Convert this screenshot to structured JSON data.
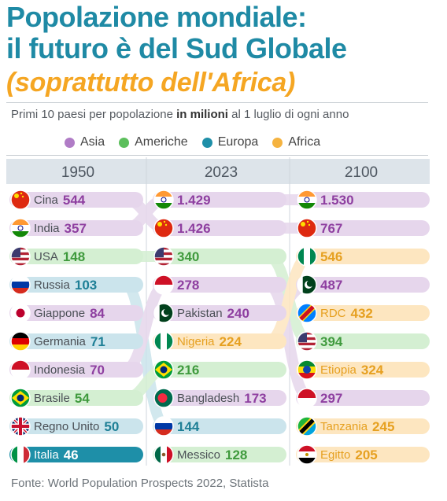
{
  "title": {
    "line1": "Popolazione mondiale:",
    "line2": "il futuro è del Sud Globale",
    "line3": "(soprattutto dell'Africa)"
  },
  "subtitle": {
    "before": "Primi 10 paesi per popolazione ",
    "bold": "in milioni",
    "after": " al 1 luglio di ogni anno"
  },
  "legend": [
    {
      "label": "Asia",
      "color": "#b07cc6"
    },
    {
      "label": "Americhe",
      "color": "#5cbf5c"
    },
    {
      "label": "Europa",
      "color": "#1e8fa8"
    },
    {
      "label": "Africa",
      "color": "#f5b340"
    }
  ],
  "source": "Fonte: World Population Prospects 2022, Statista",
  "chart_data": {
    "type": "table",
    "continent_colors": {
      "asia": {
        "bar": "#e6d6ec",
        "text": "#8e3fa0"
      },
      "americhe": {
        "bar": "#d4efd2",
        "text": "#3f9a3d"
      },
      "europa": {
        "bar": "#cbe4ec",
        "text": "#1e7f96"
      },
      "africa": {
        "bar": "#fde6c0",
        "text": "#e6a020"
      }
    },
    "columns": [
      {
        "year": "1950",
        "rows": [
          {
            "country": "Cina",
            "value": 544,
            "value_label": "544",
            "continent": "asia",
            "flag": "china"
          },
          {
            "country": "India",
            "value": 357,
            "value_label": "357",
            "continent": "asia",
            "flag": "india"
          },
          {
            "country": "USA",
            "value": 148,
            "value_label": "148",
            "continent": "americhe",
            "flag": "usa"
          },
          {
            "country": "Russia",
            "value": 103,
            "value_label": "103",
            "continent": "europa",
            "flag": "russia"
          },
          {
            "country": "Giappone",
            "value": 84,
            "value_label": "84",
            "continent": "asia",
            "flag": "japan"
          },
          {
            "country": "Germania",
            "value": 71,
            "value_label": "71",
            "continent": "europa",
            "flag": "germany"
          },
          {
            "country": "Indonesia",
            "value": 70,
            "value_label": "70",
            "continent": "asia",
            "flag": "indonesia"
          },
          {
            "country": "Brasile",
            "value": 54,
            "value_label": "54",
            "continent": "americhe",
            "flag": "brazil"
          },
          {
            "country": "Regno Unito",
            "value": 50,
            "value_label": "50",
            "continent": "europa",
            "flag": "uk"
          },
          {
            "country": "Italia",
            "value": 46,
            "value_label": "46",
            "continent": "europa",
            "flag": "italy",
            "highlight": true
          }
        ]
      },
      {
        "year": "2023",
        "rows": [
          {
            "country": "",
            "value": 1429,
            "value_label": "1.429",
            "continent": "asia",
            "flag": "india"
          },
          {
            "country": "",
            "value": 1426,
            "value_label": "1.426",
            "continent": "asia",
            "flag": "china"
          },
          {
            "country": "",
            "value": 340,
            "value_label": "340",
            "continent": "americhe",
            "flag": "usa"
          },
          {
            "country": "",
            "value": 278,
            "value_label": "278",
            "continent": "asia",
            "flag": "indonesia"
          },
          {
            "country": "Pakistan",
            "value": 240,
            "value_label": "240",
            "continent": "asia",
            "flag": "pakistan"
          },
          {
            "country": "Nigeria",
            "value": 224,
            "value_label": "224",
            "continent": "africa",
            "flag": "nigeria"
          },
          {
            "country": "",
            "value": 216,
            "value_label": "216",
            "continent": "americhe",
            "flag": "brazil"
          },
          {
            "country": "Bangladesh",
            "value": 173,
            "value_label": "173",
            "continent": "asia",
            "flag": "bangladesh"
          },
          {
            "country": "",
            "value": 144,
            "value_label": "144",
            "continent": "europa",
            "flag": "russia"
          },
          {
            "country": "Messico",
            "value": 128,
            "value_label": "128",
            "continent": "americhe",
            "flag": "mexico"
          }
        ]
      },
      {
        "year": "2100",
        "rows": [
          {
            "country": "",
            "value": 1530,
            "value_label": "1.530",
            "continent": "asia",
            "flag": "india"
          },
          {
            "country": "",
            "value": 767,
            "value_label": "767",
            "continent": "asia",
            "flag": "china"
          },
          {
            "country": "",
            "value": 546,
            "value_label": "546",
            "continent": "africa",
            "flag": "nigeria"
          },
          {
            "country": "",
            "value": 487,
            "value_label": "487",
            "continent": "asia",
            "flag": "pakistan"
          },
          {
            "country": "RDC",
            "value": 432,
            "value_label": "432",
            "continent": "africa",
            "flag": "drc"
          },
          {
            "country": "",
            "value": 394,
            "value_label": "394",
            "continent": "americhe",
            "flag": "usa"
          },
          {
            "country": "Etiopia",
            "value": 324,
            "value_label": "324",
            "continent": "africa",
            "flag": "ethiopia"
          },
          {
            "country": "",
            "value": 297,
            "value_label": "297",
            "continent": "asia",
            "flag": "indonesia"
          },
          {
            "country": "Tanzania",
            "value": 245,
            "value_label": "245",
            "continent": "africa",
            "flag": "tanzania"
          },
          {
            "country": "Egitto",
            "value": 205,
            "value_label": "205",
            "continent": "africa",
            "flag": "egypt"
          }
        ]
      }
    ]
  }
}
